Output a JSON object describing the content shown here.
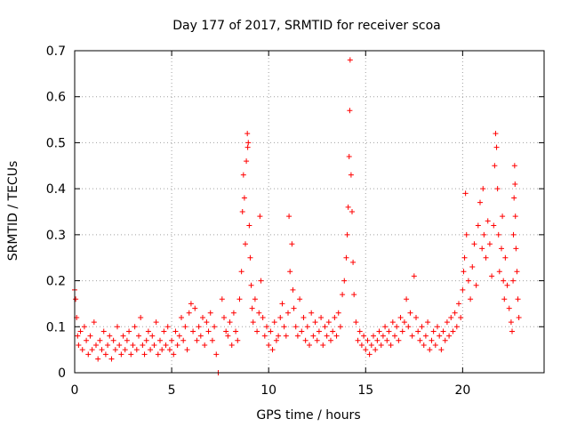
{
  "chart_data": {
    "type": "scatter",
    "title": "Day 177 of 2017, SRMTID for receiver scoa",
    "xlabel": "GPS time / hours",
    "ylabel": "SRMTID / TECUs",
    "xlim": [
      0,
      24.2
    ],
    "ylim": [
      0,
      0.7
    ],
    "x_ticks": [
      0,
      5,
      10,
      15,
      20
    ],
    "y_ticks": [
      0,
      0.1,
      0.2,
      0.3,
      0.4,
      0.5,
      0.6,
      0.7
    ],
    "x_tick_labels": [
      "0",
      "5",
      "10",
      "15",
      "20"
    ],
    "y_tick_labels": [
      "0",
      "0.1",
      "0.2",
      "0.3",
      "0.4",
      "0.5",
      "0.6",
      "0.7"
    ],
    "grid": true,
    "marker": "plus",
    "color": "#ff0000",
    "series": [
      {
        "name": "SRMTID",
        "points": [
          [
            0.0,
            0.18
          ],
          [
            0.05,
            0.16
          ],
          [
            0.1,
            0.12
          ],
          [
            0.15,
            0.08
          ],
          [
            0.2,
            0.06
          ],
          [
            0.3,
            0.09
          ],
          [
            0.4,
            0.05
          ],
          [
            0.5,
            0.1
          ],
          [
            0.6,
            0.07
          ],
          [
            0.7,
            0.04
          ],
          [
            0.8,
            0.08
          ],
          [
            0.9,
            0.05
          ],
          [
            1.0,
            0.11
          ],
          [
            1.1,
            0.06
          ],
          [
            1.2,
            0.03
          ],
          [
            1.3,
            0.07
          ],
          [
            1.4,
            0.05
          ],
          [
            1.5,
            0.09
          ],
          [
            1.6,
            0.04
          ],
          [
            1.7,
            0.06
          ],
          [
            1.8,
            0.08
          ],
          [
            1.9,
            0.03
          ],
          [
            2.0,
            0.07
          ],
          [
            2.1,
            0.05
          ],
          [
            2.2,
            0.1
          ],
          [
            2.3,
            0.06
          ],
          [
            2.4,
            0.04
          ],
          [
            2.5,
            0.08
          ],
          [
            2.6,
            0.05
          ],
          [
            2.7,
            0.07
          ],
          [
            2.8,
            0.09
          ],
          [
            2.9,
            0.04
          ],
          [
            3.0,
            0.06
          ],
          [
            3.1,
            0.1
          ],
          [
            3.2,
            0.05
          ],
          [
            3.3,
            0.08
          ],
          [
            3.4,
            0.12
          ],
          [
            3.5,
            0.06
          ],
          [
            3.6,
            0.04
          ],
          [
            3.7,
            0.07
          ],
          [
            3.8,
            0.09
          ],
          [
            3.9,
            0.05
          ],
          [
            4.0,
            0.08
          ],
          [
            4.1,
            0.06
          ],
          [
            4.2,
            0.11
          ],
          [
            4.3,
            0.04
          ],
          [
            4.4,
            0.07
          ],
          [
            4.5,
            0.05
          ],
          [
            4.6,
            0.09
          ],
          [
            4.7,
            0.06
          ],
          [
            4.8,
            0.1
          ],
          [
            4.9,
            0.05
          ],
          [
            5.0,
            0.07
          ],
          [
            5.1,
            0.04
          ],
          [
            5.2,
            0.09
          ],
          [
            5.3,
            0.06
          ],
          [
            5.4,
            0.08
          ],
          [
            5.5,
            0.12
          ],
          [
            5.6,
            0.07
          ],
          [
            5.7,
            0.1
          ],
          [
            5.8,
            0.05
          ],
          [
            5.9,
            0.13
          ],
          [
            6.0,
            0.15
          ],
          [
            6.1,
            0.09
          ],
          [
            6.2,
            0.14
          ],
          [
            6.3,
            0.07
          ],
          [
            6.4,
            0.1
          ],
          [
            6.5,
            0.08
          ],
          [
            6.6,
            0.12
          ],
          [
            6.7,
            0.06
          ],
          [
            6.8,
            0.11
          ],
          [
            6.9,
            0.09
          ],
          [
            7.0,
            0.13
          ],
          [
            7.1,
            0.07
          ],
          [
            7.2,
            0.1
          ],
          [
            7.3,
            0.04
          ],
          [
            7.4,
            0.0
          ],
          [
            7.6,
            0.16
          ],
          [
            7.7,
            0.12
          ],
          [
            7.8,
            0.09
          ],
          [
            7.9,
            0.08
          ],
          [
            8.0,
            0.11
          ],
          [
            8.1,
            0.06
          ],
          [
            8.2,
            0.13
          ],
          [
            8.3,
            0.09
          ],
          [
            8.4,
            0.07
          ],
          [
            8.5,
            0.16
          ],
          [
            8.6,
            0.22
          ],
          [
            8.65,
            0.35
          ],
          [
            8.7,
            0.43
          ],
          [
            8.75,
            0.38
          ],
          [
            8.8,
            0.28
          ],
          [
            8.85,
            0.46
          ],
          [
            8.9,
            0.52
          ],
          [
            8.92,
            0.49
          ],
          [
            8.95,
            0.5
          ],
          [
            9.0,
            0.32
          ],
          [
            9.05,
            0.25
          ],
          [
            9.1,
            0.19
          ],
          [
            9.15,
            0.14
          ],
          [
            9.2,
            0.11
          ],
          [
            9.3,
            0.16
          ],
          [
            9.4,
            0.09
          ],
          [
            9.5,
            0.13
          ],
          [
            9.55,
            0.34
          ],
          [
            9.6,
            0.2
          ],
          [
            9.7,
            0.12
          ],
          [
            9.8,
            0.08
          ],
          [
            9.9,
            0.1
          ],
          [
            10.0,
            0.06
          ],
          [
            10.1,
            0.09
          ],
          [
            10.2,
            0.05
          ],
          [
            10.3,
            0.11
          ],
          [
            10.4,
            0.07
          ],
          [
            10.5,
            0.08
          ],
          [
            10.6,
            0.12
          ],
          [
            10.7,
            0.15
          ],
          [
            10.8,
            0.1
          ],
          [
            10.9,
            0.08
          ],
          [
            11.0,
            0.13
          ],
          [
            11.05,
            0.34
          ],
          [
            11.1,
            0.22
          ],
          [
            11.2,
            0.28
          ],
          [
            11.25,
            0.18
          ],
          [
            11.3,
            0.14
          ],
          [
            11.4,
            0.1
          ],
          [
            11.5,
            0.08
          ],
          [
            11.6,
            0.16
          ],
          [
            11.7,
            0.09
          ],
          [
            11.8,
            0.12
          ],
          [
            11.9,
            0.07
          ],
          [
            12.0,
            0.1
          ],
          [
            12.1,
            0.06
          ],
          [
            12.2,
            0.13
          ],
          [
            12.3,
            0.08
          ],
          [
            12.4,
            0.11
          ],
          [
            12.5,
            0.07
          ],
          [
            12.6,
            0.09
          ],
          [
            12.7,
            0.12
          ],
          [
            12.8,
            0.06
          ],
          [
            12.9,
            0.1
          ],
          [
            13.0,
            0.08
          ],
          [
            13.1,
            0.11
          ],
          [
            13.2,
            0.07
          ],
          [
            13.3,
            0.09
          ],
          [
            13.4,
            0.12
          ],
          [
            13.5,
            0.08
          ],
          [
            13.6,
            0.13
          ],
          [
            13.7,
            0.1
          ],
          [
            13.8,
            0.17
          ],
          [
            13.9,
            0.2
          ],
          [
            14.0,
            0.25
          ],
          [
            14.05,
            0.3
          ],
          [
            14.1,
            0.36
          ],
          [
            14.15,
            0.47
          ],
          [
            14.18,
            0.57
          ],
          [
            14.2,
            0.68
          ],
          [
            14.25,
            0.43
          ],
          [
            14.3,
            0.35
          ],
          [
            14.35,
            0.24
          ],
          [
            14.4,
            0.17
          ],
          [
            14.5,
            0.11
          ],
          [
            14.6,
            0.07
          ],
          [
            14.7,
            0.09
          ],
          [
            14.8,
            0.06
          ],
          [
            14.9,
            0.08
          ],
          [
            15.0,
            0.05
          ],
          [
            15.1,
            0.07
          ],
          [
            15.2,
            0.04
          ],
          [
            15.3,
            0.06
          ],
          [
            15.4,
            0.08
          ],
          [
            15.5,
            0.05
          ],
          [
            15.6,
            0.07
          ],
          [
            15.7,
            0.09
          ],
          [
            15.8,
            0.06
          ],
          [
            15.9,
            0.08
          ],
          [
            16.0,
            0.1
          ],
          [
            16.1,
            0.07
          ],
          [
            16.2,
            0.09
          ],
          [
            16.3,
            0.06
          ],
          [
            16.4,
            0.11
          ],
          [
            16.5,
            0.08
          ],
          [
            16.6,
            0.1
          ],
          [
            16.7,
            0.07
          ],
          [
            16.8,
            0.12
          ],
          [
            16.9,
            0.09
          ],
          [
            17.0,
            0.11
          ],
          [
            17.1,
            0.16
          ],
          [
            17.2,
            0.1
          ],
          [
            17.3,
            0.13
          ],
          [
            17.4,
            0.08
          ],
          [
            17.5,
            0.21
          ],
          [
            17.6,
            0.12
          ],
          [
            17.7,
            0.09
          ],
          [
            17.8,
            0.07
          ],
          [
            17.9,
            0.1
          ],
          [
            18.0,
            0.06
          ],
          [
            18.1,
            0.08
          ],
          [
            18.2,
            0.11
          ],
          [
            18.3,
            0.05
          ],
          [
            18.4,
            0.07
          ],
          [
            18.5,
            0.09
          ],
          [
            18.6,
            0.06
          ],
          [
            18.7,
            0.1
          ],
          [
            18.8,
            0.08
          ],
          [
            18.9,
            0.05
          ],
          [
            19.0,
            0.09
          ],
          [
            19.1,
            0.07
          ],
          [
            19.2,
            0.11
          ],
          [
            19.3,
            0.08
          ],
          [
            19.4,
            0.12
          ],
          [
            19.5,
            0.09
          ],
          [
            19.6,
            0.13
          ],
          [
            19.7,
            0.1
          ],
          [
            19.8,
            0.15
          ],
          [
            19.9,
            0.12
          ],
          [
            20.0,
            0.18
          ],
          [
            20.05,
            0.22
          ],
          [
            20.1,
            0.25
          ],
          [
            20.15,
            0.39
          ],
          [
            20.2,
            0.3
          ],
          [
            20.3,
            0.2
          ],
          [
            20.4,
            0.16
          ],
          [
            20.5,
            0.23
          ],
          [
            20.6,
            0.28
          ],
          [
            20.7,
            0.19
          ],
          [
            20.8,
            0.32
          ],
          [
            20.9,
            0.37
          ],
          [
            21.0,
            0.27
          ],
          [
            21.05,
            0.4
          ],
          [
            21.1,
            0.3
          ],
          [
            21.2,
            0.25
          ],
          [
            21.3,
            0.33
          ],
          [
            21.4,
            0.28
          ],
          [
            21.5,
            0.21
          ],
          [
            21.6,
            0.32
          ],
          [
            21.65,
            0.45
          ],
          [
            21.7,
            0.52
          ],
          [
            21.75,
            0.49
          ],
          [
            21.8,
            0.4
          ],
          [
            21.85,
            0.3
          ],
          [
            21.9,
            0.22
          ],
          [
            22.0,
            0.27
          ],
          [
            22.05,
            0.34
          ],
          [
            22.1,
            0.2
          ],
          [
            22.15,
            0.16
          ],
          [
            22.2,
            0.25
          ],
          [
            22.3,
            0.19
          ],
          [
            22.4,
            0.14
          ],
          [
            22.5,
            0.11
          ],
          [
            22.55,
            0.09
          ],
          [
            22.6,
            0.2
          ],
          [
            22.62,
            0.3
          ],
          [
            22.65,
            0.38
          ],
          [
            22.68,
            0.45
          ],
          [
            22.7,
            0.41
          ],
          [
            22.72,
            0.34
          ],
          [
            22.75,
            0.27
          ],
          [
            22.8,
            0.22
          ],
          [
            22.85,
            0.16
          ],
          [
            22.9,
            0.12
          ]
        ]
      }
    ]
  }
}
